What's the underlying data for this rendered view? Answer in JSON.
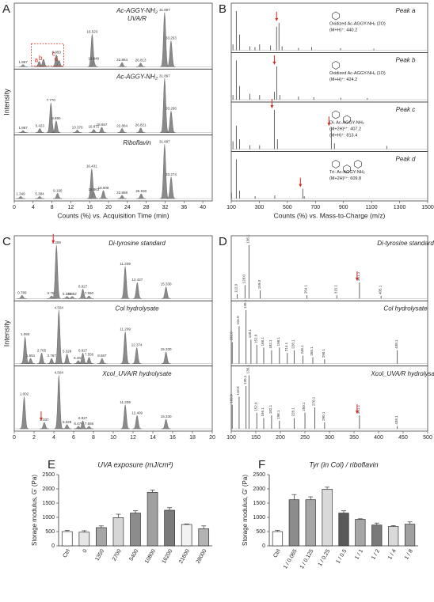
{
  "chart_data": [
    {
      "type": "chromatogram",
      "label": "A",
      "xlabel": "Counts (%) vs. Acquisition Time (min)",
      "ylabel": "Intensity",
      "xlim": [
        0,
        42
      ],
      "xticks": [
        0,
        4,
        8,
        12,
        16,
        20,
        24,
        28,
        32,
        36,
        40
      ],
      "ylim": [
        0,
        110
      ],
      "color": "#8a8a8a",
      "traces": [
        {
          "title": [
            "Ac-AGGY-NH₂",
            "UVA/R"
          ],
          "x": [
            1.867,
            5.3,
            6.2,
            8.95,
            9.5,
            16.523,
            16.849,
            22.864,
            26.813,
            31.897,
            33.253
          ],
          "values": [
            4,
            10,
            14,
            22,
            12,
            60,
            10,
            8,
            7,
            100,
            48
          ],
          "x_labels": [
            "1.867",
            null,
            null,
            "8.950",
            null,
            "16.523",
            "16.849",
            "22.864",
            "26.813",
            "31.897",
            "33.253"
          ],
          "tags": [
            "a",
            "b",
            "c",
            "d"
          ],
          "tag_peaks": [
            1,
            2,
            3,
            4
          ]
        },
        {
          "title": [
            "Ac-AGGY-NH₂"
          ],
          "x": [
            1.867,
            5.423,
            7.77,
            8.89,
            13.37,
            16.871,
            18.557,
            22.864,
            26.821,
            31.897,
            33.266
          ],
          "values": [
            4,
            8,
            55,
            22,
            5,
            6,
            10,
            8,
            9,
            100,
            40
          ],
          "x_labels": [
            "1.867",
            "5.423",
            "7.770",
            "8.890",
            "13.370",
            "16.871",
            "18.557",
            "22.864",
            "26.821",
            "31.897",
            "33.266"
          ]
        },
        {
          "title": [
            "Riboflavin"
          ],
          "x": [
            1.349,
            5.384,
            9.19,
            16.431,
            16.863,
            18.908,
            22.868,
            26.93,
            31.897,
            33.274
          ],
          "values": [
            4,
            4,
            10,
            55,
            12,
            15,
            6,
            9,
            100,
            40
          ],
          "x_labels": [
            "1.349",
            "5.384",
            "9.190",
            "16.431",
            "16.863",
            "18.908",
            "22.868",
            "26.930",
            "31.897",
            "33.274"
          ]
        }
      ]
    },
    {
      "type": "spectrum",
      "label": "B",
      "xlabel": "Counts (%) vs. Mass-to-Charge (m/z)",
      "xlim": [
        100,
        1500
      ],
      "xticks": [
        100,
        300,
        500,
        700,
        900,
        1100,
        1300,
        1500
      ],
      "ylim": [
        0,
        110
      ],
      "color": "#555555",
      "traces": [
        {
          "title": [
            "Peak a"
          ],
          "annotations": [
            "Oxidized Ac-AGGY-NH₂ (2O)",
            "(M+H)⁺: 440.2"
          ],
          "x": [
            112.0,
            136.1,
            159.0,
            233.1,
            269.2,
            302.1,
            380.2,
            423.2,
            440.2,
            462.2,
            579.1,
            673.2,
            879.3,
            1116.3
          ],
          "values": [
            15,
            100,
            40,
            10,
            8,
            15,
            12,
            60,
            70,
            10,
            6,
            8,
            5,
            4
          ],
          "arrow_peaks": [
            8
          ]
        },
        {
          "title": [
            "Peak b"
          ],
          "annotations": [
            "Oxidized Ac-AGGY-NH₂ (1O)",
            "(M+H)⁺: 424.2"
          ],
          "x": [
            112.0,
            136.1,
            159.0,
            233.1,
            302.1,
            407.2,
            424.2,
            446.2,
            579.1,
            688.3,
            880.3,
            1070.3
          ],
          "values": [
            12,
            100,
            35,
            15,
            12,
            20,
            85,
            12,
            8,
            6,
            5,
            4
          ],
          "arrow_peaks": [
            6
          ]
        },
        {
          "title": [
            "Peak c"
          ],
          "annotations": [
            "Di- Ac-AGGY-NH₂",
            "(M+2H)²⁺: 407.2",
            "(M+H)⁺: 813.4"
          ],
          "x": [
            112.0,
            136.1,
            159.0,
            233.1,
            302.1,
            407.2,
            429.2,
            813.4,
            835.4,
            1208.5
          ],
          "values": [
            20,
            60,
            25,
            10,
            10,
            100,
            25,
            55,
            15,
            8
          ],
          "arrow_peaks": [
            5,
            7
          ]
        },
        {
          "title": [
            "Peak d"
          ],
          "annotations": [
            "Tri- Ac-AGGY-NH₂",
            "(M+2H)²⁺: 609.8"
          ],
          "x": [
            102.0,
            136.1,
            159.0,
            270.1,
            410.2,
            609.8,
            620.3
          ],
          "values": [
            15,
            100,
            20,
            6,
            8,
            25,
            6
          ],
          "arrow_peaks": [
            5
          ]
        }
      ]
    },
    {
      "type": "chromatogram",
      "label": "C",
      "ylabel": "Intensity",
      "xlim": [
        0,
        20
      ],
      "xticks": [
        0,
        2,
        4,
        6,
        8,
        10,
        12,
        14,
        16,
        18,
        20
      ],
      "ylim": [
        0,
        110
      ],
      "color": "#8a8a8a",
      "traces": [
        {
          "title": [
            "Di-tyrosine standard"
          ],
          "x": [
            0.789,
            3.766,
            4.259,
            5.328,
            5.852,
            6.927,
            7.55,
            11.209,
            12.427,
            15.33
          ],
          "values": [
            6,
            5,
            100,
            4,
            4,
            18,
            5,
            60,
            30,
            22
          ],
          "x_labels": [
            "0.789",
            "3.766",
            "4.259",
            "5.328",
            "5.852",
            "6.927",
            "7.550",
            "11.209",
            "12.427",
            "15.330"
          ],
          "arrow_peaks": [
            2
          ]
        },
        {
          "title": [
            "Col hydrolysate"
          ],
          "x": [
            1.093,
            1.651,
            2.765,
            3.767,
            4.504,
            5.328,
            6.463,
            6.927,
            7.556,
            8.867,
            11.209,
            12.374,
            15.33
          ],
          "values": [
            50,
            10,
            20,
            10,
            100,
            18,
            6,
            20,
            12,
            10,
            60,
            30,
            22
          ],
          "x_labels": [
            "1.093",
            "1.651",
            "2.765",
            "3.767",
            "4.504",
            "5.328",
            "6.463",
            "6.927",
            "7.556",
            "8.867",
            "11.209",
            "12.374",
            "15.330"
          ]
        },
        {
          "title": [
            "Xcol_UVA/R hydrolysate"
          ],
          "x": [
            1.002,
            3.037,
            4.504,
            5.328,
            6.476,
            6.927,
            7.556,
            11.209,
            12.409,
            15.33
          ],
          "values": [
            60,
            12,
            100,
            8,
            5,
            15,
            5,
            45,
            25,
            18
          ],
          "x_labels": [
            "1.002",
            "3.037",
            "4.504",
            "5.328",
            "6.476",
            "6.927",
            "7.556",
            "11.209",
            "12.409",
            "15.330"
          ],
          "arrow_peaks": [
            1
          ]
        }
      ]
    },
    {
      "type": "spectrum",
      "label": "D",
      "xlim": [
        100,
        500
      ],
      "xticks": [
        100,
        150,
        200,
        250,
        300,
        350,
        400,
        450,
        500
      ],
      "ylim": [
        0,
        110
      ],
      "color": "#555555",
      "traces": [
        {
          "title": [
            "Di-tyrosine standard"
          ],
          "x": [
            112.0,
            128.0,
            136.1,
            159.0,
            254.1,
            315.1,
            361.1,
            405.1
          ],
          "values": [
            8,
            25,
            100,
            15,
            6,
            6,
            30,
            5
          ],
          "x_labels": [
            "112.0",
            "128.0",
            "136.1",
            "159.0",
            "254.1",
            "315.1",
            "361.1",
            "405.1"
          ],
          "arrow_peaks": [
            6
          ]
        },
        {
          "title": [
            "Col hydrolysate"
          ],
          "x": [
            102.0,
            116.0,
            130.1,
            140.1,
            152.0,
            166.1,
            182.1,
            198.1,
            214.1,
            228.1,
            246.1,
            266.1,
            290.1,
            438.1
          ],
          "values": [
            40,
            70,
            100,
            45,
            35,
            30,
            25,
            30,
            20,
            25,
            15,
            12,
            8,
            25
          ],
          "x_labels": [
            "102.0",
            "116.0",
            "130.1",
            "140.1",
            "152.0",
            "166.1",
            "182.1",
            "198.1",
            "214.1",
            "228.1",
            "246.1",
            "266.1",
            "290.1",
            "438.1"
          ]
        },
        {
          "title": [
            "Xcol_UVA/R hydrolysate"
          ],
          "x": [
            102.0,
            116.0,
            130.1,
            136.1,
            152.0,
            166.1,
            182.1,
            198.1,
            228.1,
            250.1,
            270.1,
            290.1,
            361.1,
            438.1
          ],
          "values": [
            45,
            60,
            80,
            100,
            30,
            20,
            25,
            15,
            20,
            30,
            40,
            12,
            25,
            5
          ],
          "x_labels": [
            "102.0",
            "116.0",
            "130.1",
            "136.1",
            "152.0",
            "166.1",
            "182.1",
            "198.1",
            "228.1",
            "250.1",
            "270.1",
            "290.1",
            "361.1",
            "438.1"
          ],
          "arrow_peaks": [
            12
          ]
        }
      ]
    },
    {
      "type": "bar",
      "label": "E",
      "title": "UVA exposure (mJ/cm²)",
      "ylabel": "Storage modulus, G' (Pa)",
      "categories": [
        "Ctrl",
        "0",
        "1350",
        "2700",
        "5400",
        "10800",
        "16200",
        "21600",
        "28000"
      ],
      "values": [
        500,
        480,
        640,
        990,
        1150,
        1880,
        1250,
        750,
        600
      ],
      "errors": [
        40,
        50,
        60,
        120,
        80,
        80,
        90,
        20,
        100
      ],
      "colors": [
        "#ffffff",
        "#e6e6e6",
        "#a6a6a6",
        "#d6d6d6",
        "#8c8c8c",
        "#a0a0a0",
        "#7a7a7a",
        "#f2f2f2",
        "#b3b3b3"
      ],
      "ylim": [
        0,
        2500
      ],
      "yticks": [
        0,
        500,
        1000,
        1500,
        2000,
        2500
      ]
    },
    {
      "type": "bar",
      "label": "F",
      "title": "Tyr (in Col) / riboflavin",
      "ylabel": "Storage modulus, G' (Pa)",
      "categories": [
        "Ctrl",
        "1 / 0.065",
        "1 / 0.125",
        "1 / 0.25",
        "1 / 0.5",
        "1 / 1",
        "1 / 2",
        "1 / 4",
        "1 / 8"
      ],
      "values": [
        500,
        1620,
        1620,
        1990,
        1150,
        930,
        730,
        680,
        760
      ],
      "errors": [
        40,
        180,
        100,
        70,
        80,
        20,
        70,
        30,
        80
      ],
      "colors": [
        "#ffffff",
        "#8c8c8c",
        "#a6a6a6",
        "#d9d9d9",
        "#595959",
        "#a6a6a6",
        "#7a7a7a",
        "#d9d9d9",
        "#a0a0a0"
      ],
      "ylim": [
        0,
        2500
      ],
      "yticks": [
        0,
        500,
        1000,
        1500,
        2000,
        2500
      ]
    }
  ]
}
